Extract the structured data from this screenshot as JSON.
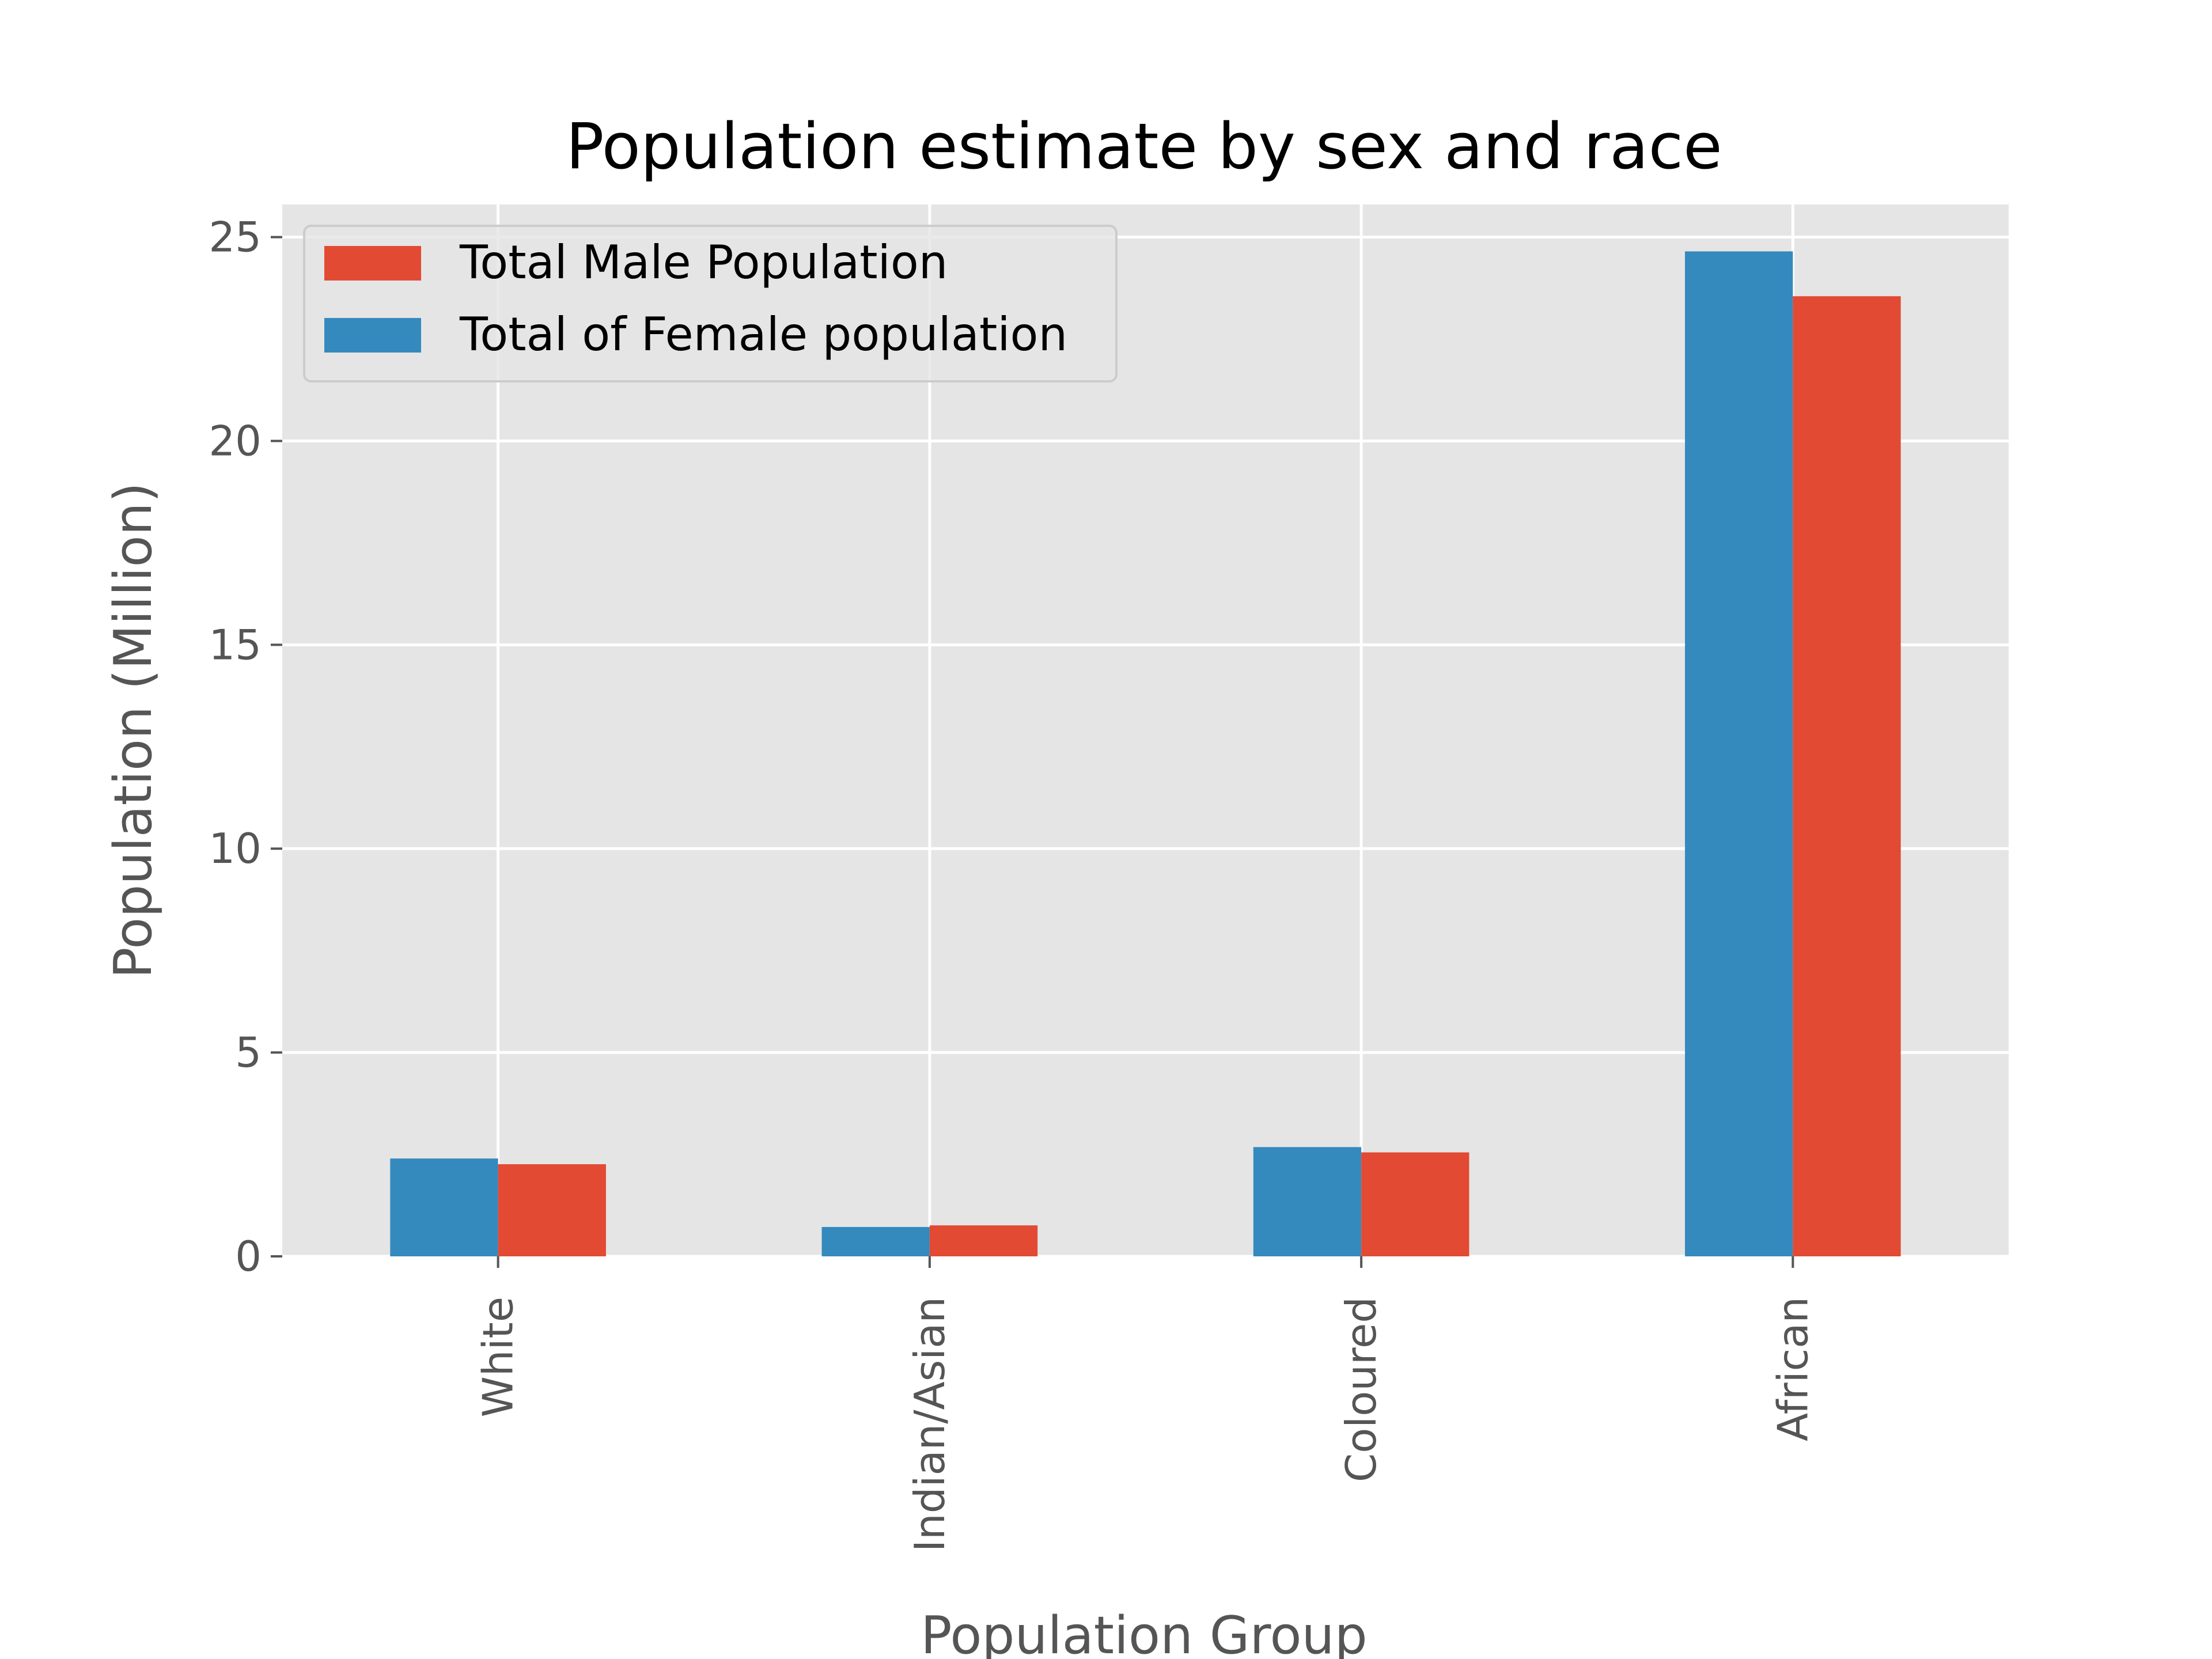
{
  "chart_data": {
    "type": "bar",
    "title": "Population estimate by sex and race",
    "xlabel": "Population Group",
    "ylabel": "Population (Million)",
    "categories": [
      "White",
      "Indian/Asian",
      "Coloured",
      "African"
    ],
    "series": [
      {
        "name": "Total of Female population",
        "values": [
          2.4,
          0.72,
          2.68,
          24.65
        ],
        "color": "#348ABD"
      },
      {
        "name": "Total Male Population",
        "values": [
          2.26,
          0.76,
          2.55,
          23.55
        ],
        "color": "#E24A33"
      }
    ],
    "legend_order": [
      1,
      0
    ],
    "ylim": [
      0,
      25.8
    ],
    "yticks": [
      0,
      5,
      10,
      15,
      20,
      25
    ],
    "grid": true,
    "legend_position": "top-left",
    "background_color": "#E5E5E5",
    "grid_color": "#FFFFFF"
  }
}
